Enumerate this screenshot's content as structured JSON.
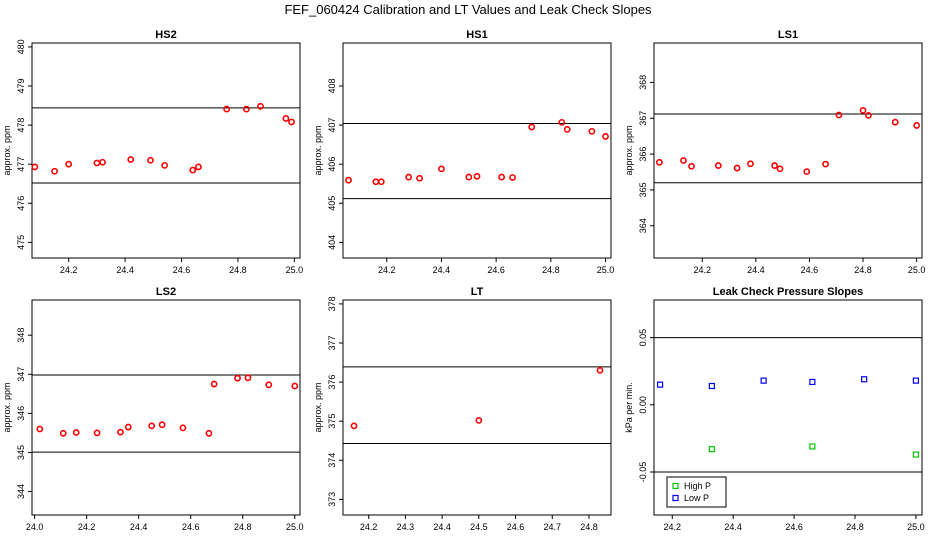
{
  "title": "FEF_060424  Calibration and LT Values and Leak Check Slopes",
  "chart_data": [
    {
      "type": "scatter",
      "title": "HS2",
      "xlabel": "",
      "ylabel": "approx. ppm",
      "xlim": [
        24.07,
        25.02
      ],
      "ylim": [
        474.6,
        480.1
      ],
      "xticks": [
        24.2,
        24.4,
        24.6,
        24.8,
        25.0
      ],
      "xtick_labels": [
        "24.2",
        "24.4",
        "24.6",
        "24.8",
        "25.0"
      ],
      "yticks": [
        475,
        476,
        477,
        478,
        479,
        480
      ],
      "ytick_labels": [
        "475",
        "476",
        "477",
        "478",
        "479",
        "480"
      ],
      "hlines": [
        478.44,
        476.52
      ],
      "series": [
        {
          "name": "values",
          "marker": "circle",
          "color": "#ff0000",
          "x": [
            24.08,
            24.15,
            24.2,
            24.3,
            24.32,
            24.42,
            24.49,
            24.54,
            24.64,
            24.66,
            24.76,
            24.83,
            24.88,
            24.97,
            24.99
          ],
          "y": [
            476.93,
            476.82,
            477.0,
            477.03,
            477.05,
            477.12,
            477.1,
            476.97,
            476.85,
            476.93,
            478.41,
            478.41,
            478.48,
            478.17,
            478.08
          ]
        }
      ]
    },
    {
      "type": "scatter",
      "title": "HS1",
      "xlabel": "",
      "ylabel": "approx. ppm",
      "xlim": [
        24.04,
        25.02
      ],
      "ylim": [
        403.6,
        409.1
      ],
      "xticks": [
        24.2,
        24.4,
        24.6,
        24.8,
        25.0
      ],
      "xtick_labels": [
        "24.2",
        "24.4",
        "24.6",
        "24.8",
        "25.0"
      ],
      "yticks": [
        404,
        405,
        406,
        407,
        408
      ],
      "ytick_labels": [
        "404",
        "405",
        "406",
        "407",
        "408"
      ],
      "hlines": [
        407.04,
        405.12
      ],
      "series": [
        {
          "name": "values",
          "marker": "circle",
          "color": "#ff0000",
          "x": [
            24.06,
            24.16,
            24.18,
            24.28,
            24.32,
            24.4,
            24.5,
            24.53,
            24.62,
            24.66,
            24.73,
            24.84,
            24.86,
            24.95,
            25.0
          ],
          "y": [
            405.59,
            405.55,
            405.55,
            405.67,
            405.64,
            405.88,
            405.67,
            405.69,
            405.67,
            405.66,
            406.95,
            407.07,
            406.89,
            406.84,
            406.71
          ]
        }
      ]
    },
    {
      "type": "scatter",
      "title": "LS1",
      "xlabel": "",
      "ylabel": "approx. ppm",
      "xlim": [
        24.02,
        25.02
      ],
      "ylim": [
        363.1,
        369.1
      ],
      "xticks": [
        24.2,
        24.4,
        24.6,
        24.8,
        25.0
      ],
      "xtick_labels": [
        "24.2",
        "24.4",
        "24.6",
        "24.8",
        "25.0"
      ],
      "yticks": [
        364,
        365,
        366,
        367,
        368
      ],
      "ytick_labels": [
        "364",
        "365",
        "366",
        "367",
        "368"
      ],
      "hlines": [
        367.12,
        365.2
      ],
      "series": [
        {
          "name": "values",
          "marker": "circle",
          "color": "#ff0000",
          "x": [
            24.04,
            24.13,
            24.16,
            24.26,
            24.33,
            24.38,
            24.47,
            24.49,
            24.59,
            24.66,
            24.71,
            24.8,
            24.82,
            24.92,
            25.0
          ],
          "y": [
            365.77,
            365.82,
            365.66,
            365.68,
            365.61,
            365.73,
            365.68,
            365.59,
            365.51,
            365.72,
            367.09,
            367.22,
            367.08,
            366.89,
            366.8
          ]
        }
      ]
    },
    {
      "type": "scatter",
      "title": "LS2",
      "xlabel": "",
      "ylabel": "approx. ppm",
      "xlim": [
        23.99,
        25.02
      ],
      "ylim": [
        343.4,
        348.9
      ],
      "xticks": [
        24.0,
        24.2,
        24.4,
        24.6,
        24.8,
        25.0
      ],
      "xtick_labels": [
        "24.0",
        "24.2",
        "24.4",
        "24.6",
        "24.8",
        "25.0"
      ],
      "yticks": [
        344,
        345,
        346,
        347,
        348
      ],
      "ytick_labels": [
        "344",
        "345",
        "346",
        "347",
        "348"
      ],
      "hlines": [
        346.98,
        345.01
      ],
      "series": [
        {
          "name": "values",
          "marker": "circle",
          "color": "#ff0000",
          "x": [
            24.02,
            24.11,
            24.16,
            24.24,
            24.33,
            24.36,
            24.45,
            24.49,
            24.57,
            24.67,
            24.69,
            24.78,
            24.82,
            24.9,
            25.0
          ],
          "y": [
            345.6,
            345.49,
            345.51,
            345.5,
            345.52,
            345.65,
            345.68,
            345.71,
            345.63,
            345.49,
            346.75,
            346.9,
            346.91,
            346.73,
            346.7
          ]
        }
      ]
    },
    {
      "type": "scatter",
      "title": "LT",
      "xlabel": "",
      "ylabel": "approx. ppm",
      "xlim": [
        24.13,
        24.86
      ],
      "ylim": [
        372.6,
        378.1
      ],
      "xticks": [
        24.2,
        24.3,
        24.4,
        24.5,
        24.6,
        24.7,
        24.8
      ],
      "xtick_labels": [
        "24.2",
        "24.3",
        "24.4",
        "24.5",
        "24.6",
        "24.7",
        "24.8"
      ],
      "yticks": [
        373,
        374,
        375,
        376,
        377,
        378
      ],
      "ytick_labels": [
        "373",
        "374",
        "375",
        "376",
        "377",
        "378"
      ],
      "hlines": [
        376.39,
        374.43
      ],
      "series": [
        {
          "name": "values",
          "marker": "circle",
          "color": "#ff0000",
          "x": [
            24.16,
            24.5,
            24.83
          ],
          "y": [
            374.88,
            375.02,
            376.3
          ]
        }
      ]
    },
    {
      "type": "scatter",
      "title": "Leak Check Pressure Slopes",
      "xlabel": "",
      "ylabel": "kPa per min.",
      "xlim": [
        24.14,
        25.02
      ],
      "ylim": [
        -0.082,
        0.078
      ],
      "xticks": [
        24.2,
        24.4,
        24.6,
        24.8,
        25.0
      ],
      "xtick_labels": [
        "24.2",
        "24.4",
        "24.6",
        "24.8",
        "25.0"
      ],
      "yticks": [
        -0.05,
        0.0,
        0.05
      ],
      "ytick_labels": [
        "-0.05",
        "0.00",
        "0.05"
      ],
      "hlines": [
        0.05,
        -0.05
      ],
      "legend": {
        "position": "bottom-left",
        "entries": [
          "High P",
          "Low P"
        ]
      },
      "series": [
        {
          "name": "High P",
          "marker": "square",
          "color": "#00cc00",
          "x": [
            24.33,
            24.66,
            25.0
          ],
          "y": [
            -0.033,
            -0.031,
            -0.037
          ]
        },
        {
          "name": "Low P",
          "marker": "square",
          "color": "#0000ff",
          "x": [
            24.16,
            24.33,
            24.5,
            24.66,
            24.83,
            25.0
          ],
          "y": [
            0.015,
            0.014,
            0.018,
            0.017,
            0.019,
            0.018
          ]
        }
      ]
    }
  ]
}
